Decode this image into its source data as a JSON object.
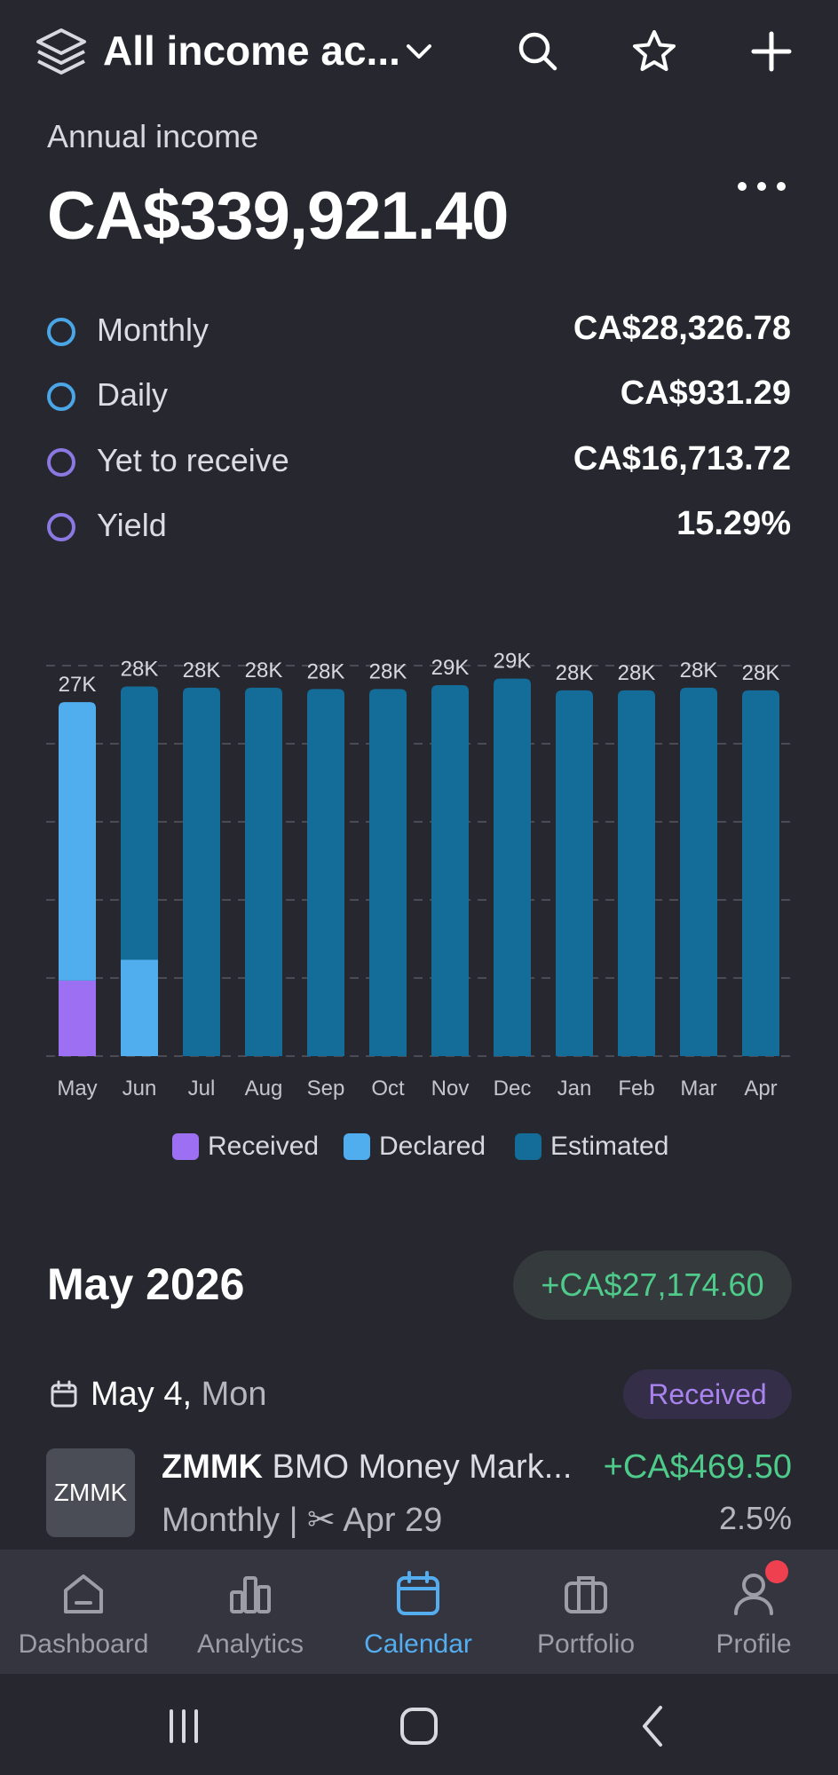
{
  "header": {
    "account_selector": "All income ac...",
    "icons": [
      "layers-icon",
      "chevron-down-icon",
      "search-icon",
      "star-icon",
      "plus-icon"
    ]
  },
  "summary": {
    "label": "Annual income",
    "value": "CA$339,921.40",
    "stats": [
      {
        "label": "Monthly",
        "value": "CA$28,326.78",
        "color": "#4aa6e6"
      },
      {
        "label": "Daily",
        "value": "CA$931.29",
        "color": "#4aa6e6"
      },
      {
        "label": "Yet to receive",
        "value": "CA$16,713.72",
        "color": "#8b78e2"
      },
      {
        "label": "Yield",
        "value": "15.29%",
        "color": "#8b78e2"
      }
    ]
  },
  "chart_data": {
    "type": "bar",
    "stacked": true,
    "categories": [
      "May",
      "Jun",
      "Jul",
      "Aug",
      "Sep",
      "Oct",
      "Nov",
      "Dec",
      "Jan",
      "Feb",
      "Mar",
      "Apr"
    ],
    "bar_labels": [
      "27K",
      "28K",
      "28K",
      "28K",
      "28K",
      "28K",
      "29K",
      "29K",
      "28K",
      "28K",
      "28K",
      "28K"
    ],
    "series": [
      {
        "name": "Received",
        "color": "#9d6ff2",
        "values": [
          5800,
          0,
          0,
          0,
          0,
          0,
          0,
          0,
          0,
          0,
          0,
          0
        ]
      },
      {
        "name": "Declared",
        "color": "#50aeef",
        "values": [
          21400,
          7400,
          0,
          0,
          0,
          0,
          0,
          0,
          0,
          0,
          0,
          0
        ]
      },
      {
        "name": "Estimated",
        "color": "#146d98",
        "values": [
          0,
          21000,
          28300,
          28300,
          28200,
          28200,
          28500,
          29000,
          28100,
          28100,
          28300,
          28100
        ]
      }
    ],
    "ylim": [
      0,
      30000
    ],
    "grid": true,
    "legend": "bottom-center"
  },
  "legend": [
    {
      "label": "Received",
      "color": "#9d6ff2"
    },
    {
      "label": "Declared",
      "color": "#50aeef"
    },
    {
      "label": "Estimated",
      "color": "#146d98"
    }
  ],
  "month_section": {
    "title": "May 2026",
    "total": "+CA$27,174.60",
    "day": {
      "date": "May 4,",
      "weekday": " Mon",
      "status": "Received",
      "holding": {
        "logo_text": "ZMMK",
        "ticker": "ZMMK",
        "name": " BMO Money Mark...",
        "amount": "+CA$469.50",
        "frequency": "Monthly | ",
        "ex_date": " Apr 29",
        "yield": "2.5%"
      }
    }
  },
  "nav": [
    {
      "label": "Dashboard",
      "icon": "home-icon"
    },
    {
      "label": "Analytics",
      "icon": "analytics-icon"
    },
    {
      "label": "Calendar",
      "icon": "calendar-icon",
      "active": true
    },
    {
      "label": "Portfolio",
      "icon": "briefcase-icon"
    },
    {
      "label": "Profile",
      "icon": "profile-icon"
    }
  ]
}
